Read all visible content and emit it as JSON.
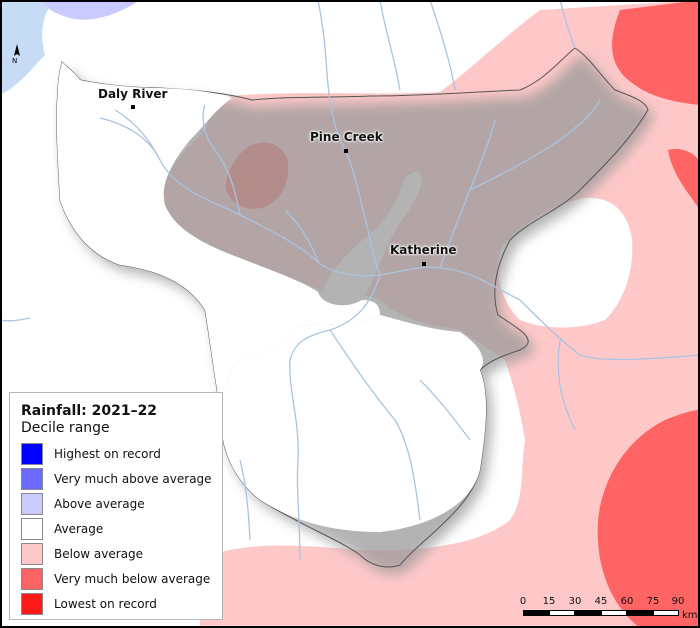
{
  "legend": {
    "title": "Rainfall: 2021–22",
    "subtitle": "Decile range",
    "items": [
      {
        "label": "Highest on record",
        "color": "#0000ff"
      },
      {
        "label": "Very much above average",
        "color": "#6b6bff"
      },
      {
        "label": "Above average",
        "color": "#cacaff"
      },
      {
        "label": "Average",
        "color": "#ffffff"
      },
      {
        "label": "Below average",
        "color": "#ffc8c8"
      },
      {
        "label": "Very much below average",
        "color": "#ff6464"
      },
      {
        "label": "Lowest on record",
        "color": "#ff1a1a"
      }
    ]
  },
  "places": [
    {
      "name": "Daly River"
    },
    {
      "name": "Pine Creek"
    },
    {
      "name": "Katherine"
    }
  ],
  "scale": {
    "ticks": [
      "0",
      "15",
      "30",
      "45",
      "60",
      "75",
      "90"
    ],
    "unit": "km"
  },
  "north": {
    "label": "N"
  },
  "colors": {
    "sea": "#c6dcf4",
    "river": "#a9c4e0",
    "shadow": "#9a9a9a"
  }
}
